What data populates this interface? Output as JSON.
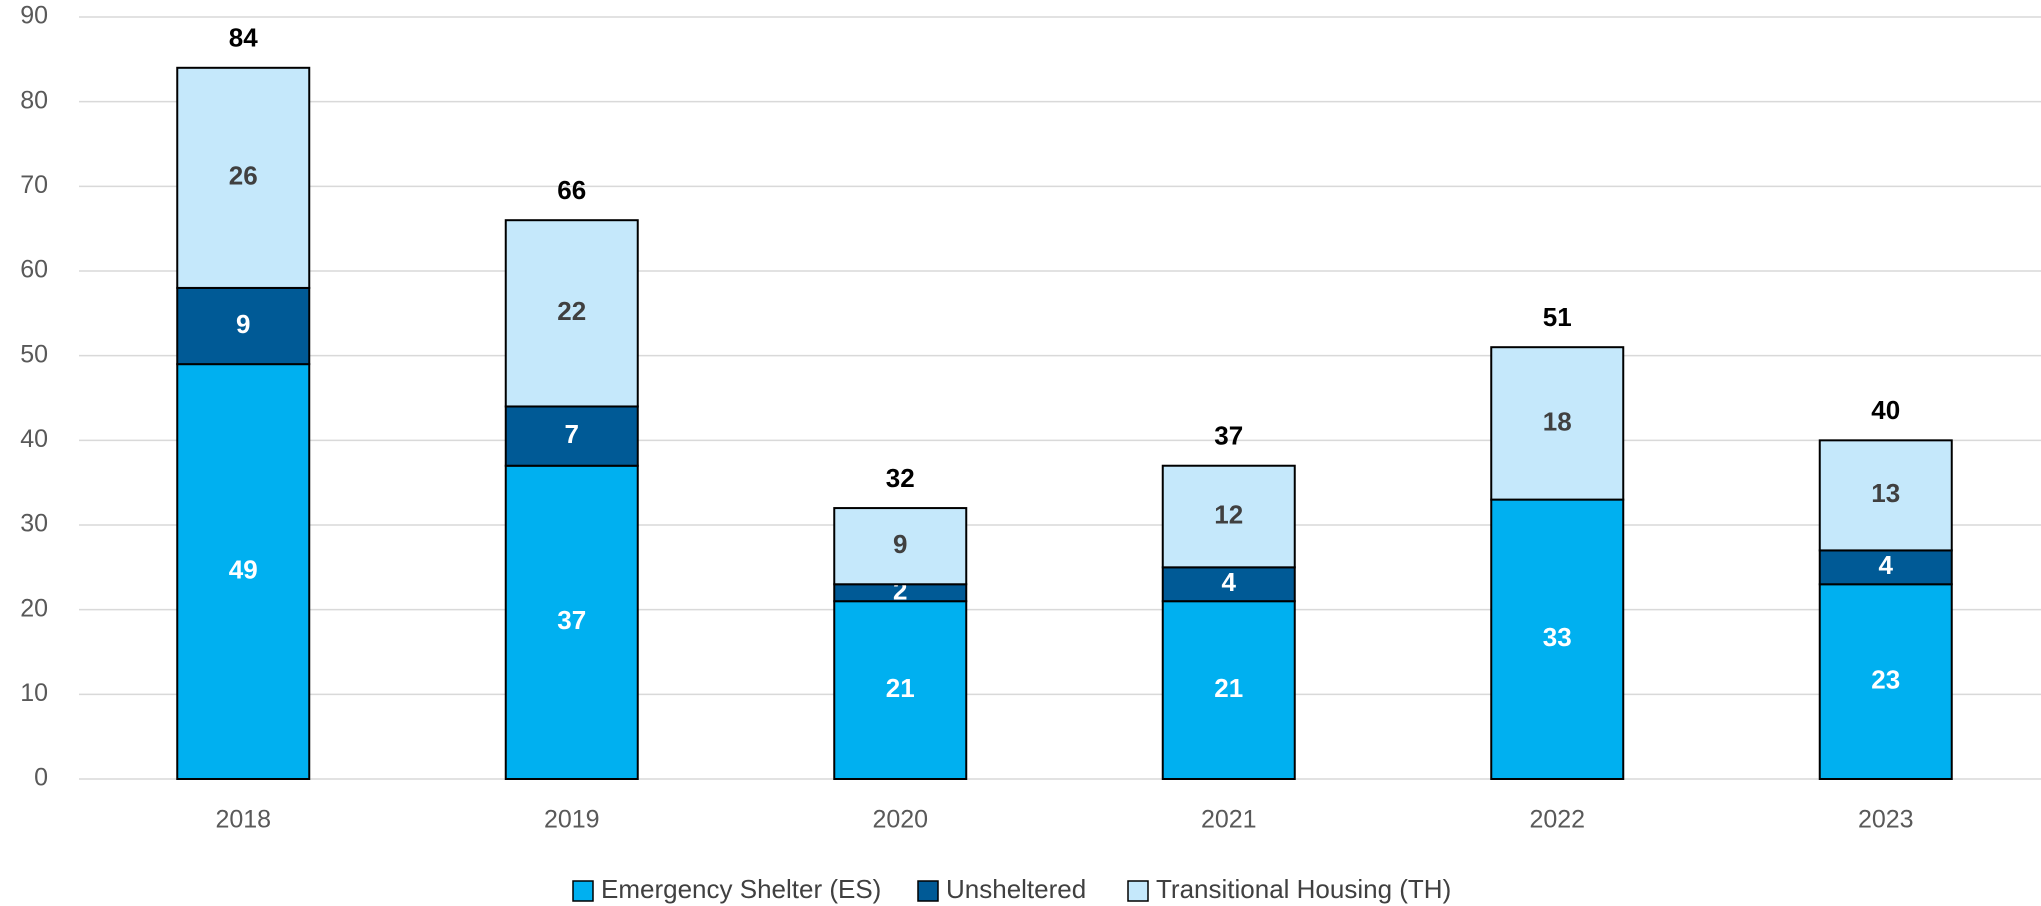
{
  "chart_data": {
    "type": "stacked_bar",
    "categories": [
      "2018",
      "2019",
      "2020",
      "2021",
      "2022",
      "2023"
    ],
    "series": [
      {
        "name": "Emergency Shelter (ES)",
        "color": "#00b0f0",
        "label_color": "#ffffff",
        "values": [
          49,
          37,
          21,
          21,
          33,
          23
        ]
      },
      {
        "name": "Unsheltered",
        "color": "#005a96",
        "label_color": "#ffffff",
        "values": [
          9,
          7,
          2,
          4,
          0,
          4
        ]
      },
      {
        "name": "Transitional Housing (TH)",
        "color": "#c5e8fb",
        "label_color": "#404040",
        "values": [
          26,
          22,
          9,
          12,
          18,
          13
        ]
      }
    ],
    "totals": [
      84,
      66,
      32,
      37,
      51,
      40
    ],
    "ylim": [
      0,
      90
    ],
    "yticks": [
      0,
      10,
      20,
      30,
      40,
      50,
      60,
      70,
      80,
      90
    ],
    "grid": true,
    "legend": "bottom"
  }
}
